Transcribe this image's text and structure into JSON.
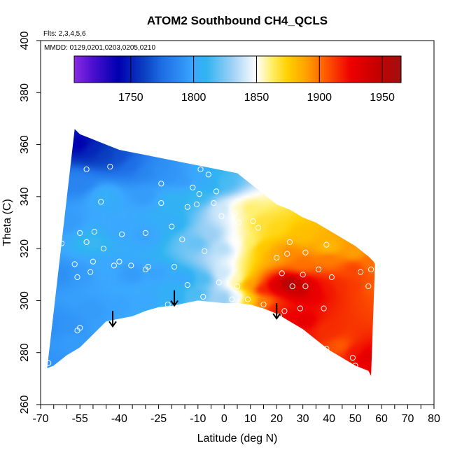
{
  "chart_data": {
    "type": "heatmap",
    "title": "ATOM2 Southbound CH4_QCLS",
    "xlabel": "Latitude (deg N)",
    "ylabel": "Theta (C)",
    "xlim": [
      -70,
      80
    ],
    "ylim": [
      260,
      400
    ],
    "x_ticks": [
      -70,
      -55,
      -40,
      -25,
      -10,
      0,
      10,
      20,
      30,
      40,
      50,
      60,
      70,
      80
    ],
    "x_tick_labels": [
      "-70",
      "-55",
      "-40",
      "-25",
      "-10",
      "0",
      "10",
      "20",
      "30",
      "40",
      "50",
      "60",
      "70",
      "80"
    ],
    "x_minor_ticks": [
      -65,
      -60,
      -50,
      -45,
      -35,
      -30,
      -20,
      -15,
      -5,
      5,
      15,
      25,
      35,
      45,
      55,
      65,
      75
    ],
    "y_ticks": [
      260,
      280,
      300,
      320,
      340,
      360,
      380,
      400
    ],
    "y_tick_labels": [
      "260",
      "280",
      "300",
      "320",
      "340",
      "360",
      "380",
      "400"
    ],
    "annotations": {
      "flights": "Flts: 2,3,4,5,6",
      "dates": "MMDD: 0129,0201,0203,0205,0210"
    },
    "colorbar": {
      "min": 1705,
      "max": 1965,
      "ticks": [
        1750,
        1800,
        1850,
        1900,
        1950
      ],
      "tick_labels": [
        "1750",
        "1800",
        "1850",
        "1900",
        "1950"
      ],
      "colors": [
        "#8a2be2",
        "#4b0fd0",
        "#0000b0",
        "#0a3ec0",
        "#1e6ee6",
        "#2e8ff5",
        "#3ba8ff",
        "#30b4f2",
        "#9ad0f5",
        "#ffffff",
        "#ffef6a",
        "#ffd000",
        "#ffa000",
        "#ff5a00",
        "#ee0000",
        "#c80000",
        "#a01010"
      ],
      "stops": [
        1705,
        1720,
        1740,
        1760,
        1775,
        1790,
        1800,
        1810,
        1830,
        1850,
        1862,
        1875,
        1890,
        1905,
        1925,
        1945,
        1965
      ]
    },
    "domain_top_boundary": [
      [
        -57,
        366
      ],
      [
        -55,
        364
      ],
      [
        -50,
        362
      ],
      [
        -45,
        360
      ],
      [
        -40,
        358
      ],
      [
        -35,
        357
      ],
      [
        -30,
        356
      ],
      [
        -25,
        355
      ],
      [
        -20,
        354
      ],
      [
        -15,
        353
      ],
      [
        -10,
        352
      ],
      [
        -5,
        351
      ],
      [
        0,
        350
      ],
      [
        5,
        349
      ],
      [
        10,
        345
      ],
      [
        15,
        341
      ],
      [
        20,
        337
      ],
      [
        25,
        335
      ],
      [
        30,
        332
      ],
      [
        35,
        330
      ],
      [
        40,
        327
      ],
      [
        45,
        324
      ],
      [
        50,
        321
      ],
      [
        55,
        317
      ],
      [
        57,
        315
      ],
      [
        57.5,
        314
      ]
    ],
    "domain_bottom_boundary": [
      [
        -67.5,
        274
      ],
      [
        -65,
        275
      ],
      [
        -60,
        279
      ],
      [
        -55,
        282
      ],
      [
        -50,
        287
      ],
      [
        -45,
        292
      ],
      [
        -40,
        293
      ],
      [
        -35,
        294
      ],
      [
        -30,
        296
      ],
      [
        -25,
        297.5
      ],
      [
        -20,
        298
      ],
      [
        -15,
        299
      ],
      [
        -10,
        300
      ],
      [
        -5,
        299.5
      ],
      [
        0,
        299
      ],
      [
        5,
        299
      ],
      [
        10,
        298.5
      ],
      [
        15,
        297
      ],
      [
        20,
        295
      ],
      [
        25,
        292
      ],
      [
        30,
        289
      ],
      [
        35,
        285
      ],
      [
        40,
        281
      ],
      [
        45,
        278
      ],
      [
        50,
        275
      ],
      [
        55,
        273
      ],
      [
        56,
        271
      ]
    ],
    "field_samples": [
      [
        -55,
        360,
        1740
      ],
      [
        -50,
        358,
        1752
      ],
      [
        -45,
        356,
        1760
      ],
      [
        -40,
        355,
        1765
      ],
      [
        -35,
        352,
        1775
      ],
      [
        -30,
        350,
        1785
      ],
      [
        -25,
        350,
        1790
      ],
      [
        -20,
        348,
        1792
      ],
      [
        -15,
        346,
        1795
      ],
      [
        -10,
        346,
        1800
      ],
      [
        -5,
        345,
        1805
      ],
      [
        0,
        345,
        1815
      ],
      [
        -55,
        345,
        1785
      ],
      [
        -45,
        340,
        1805
      ],
      [
        -30,
        340,
        1795
      ],
      [
        -20,
        338,
        1808
      ],
      [
        -10,
        340,
        1812
      ],
      [
        0,
        335,
        1840
      ],
      [
        5,
        335,
        1855
      ],
      [
        10,
        335,
        1862
      ],
      [
        15,
        330,
        1868
      ],
      [
        20,
        328,
        1872
      ],
      [
        30,
        325,
        1880
      ],
      [
        40,
        320,
        1882
      ],
      [
        50,
        318,
        1890
      ],
      [
        56,
        314,
        1900
      ],
      [
        -60,
        330,
        1795
      ],
      [
        -50,
        322,
        1812
      ],
      [
        -40,
        328,
        1800
      ],
      [
        -30,
        325,
        1798
      ],
      [
        -20,
        330,
        1805
      ],
      [
        -10,
        322,
        1820
      ],
      [
        -5,
        325,
        1830
      ],
      [
        0,
        320,
        1835
      ],
      [
        5,
        322,
        1850
      ],
      [
        10,
        322,
        1862
      ],
      [
        15,
        320,
        1878
      ],
      [
        20,
        318,
        1888
      ],
      [
        25,
        318,
        1895
      ],
      [
        30,
        314,
        1900
      ],
      [
        40,
        316,
        1898
      ],
      [
        50,
        312,
        1910
      ],
      [
        -62,
        310,
        1790
      ],
      [
        -55,
        310,
        1795
      ],
      [
        -45,
        312,
        1800
      ],
      [
        -35,
        310,
        1795
      ],
      [
        -25,
        310,
        1798
      ],
      [
        -15,
        308,
        1800
      ],
      [
        -8,
        308,
        1815
      ],
      [
        0,
        310,
        1840
      ],
      [
        5,
        308,
        1855
      ],
      [
        10,
        306,
        1890
      ],
      [
        15,
        304,
        1918
      ],
      [
        20,
        305,
        1935
      ],
      [
        25,
        306,
        1958
      ],
      [
        30,
        304,
        1945
      ],
      [
        35,
        303,
        1928
      ],
      [
        40,
        304,
        1920
      ],
      [
        45,
        305,
        1915
      ],
      [
        50,
        305,
        1912
      ],
      [
        56,
        305,
        1905
      ],
      [
        -66,
        290,
        1790
      ],
      [
        -60,
        290,
        1792
      ],
      [
        -50,
        296,
        1795
      ],
      [
        -40,
        298,
        1798
      ],
      [
        -30,
        300,
        1800
      ],
      [
        -20,
        301,
        1805
      ],
      [
        -10,
        302,
        1815
      ],
      [
        0,
        301,
        1830
      ],
      [
        5,
        301,
        1845
      ],
      [
        10,
        300,
        1875
      ],
      [
        15,
        299,
        1898
      ],
      [
        20,
        296,
        1918
      ],
      [
        25,
        294,
        1925
      ],
      [
        30,
        292,
        1930
      ],
      [
        40,
        288,
        1915
      ],
      [
        45,
        282,
        1905
      ],
      [
        50,
        280,
        1920
      ],
      [
        55,
        278,
        1930
      ],
      [
        -67,
        276,
        1792
      ],
      [
        -58,
        284,
        1795
      ],
      [
        0,
        300,
        1828
      ],
      [
        30,
        286,
        1920
      ]
    ],
    "sample_points": [
      [
        -52.5,
        350.5
      ],
      [
        -43.5,
        351.5
      ],
      [
        -9,
        350.5
      ],
      [
        -6,
        348.5
      ],
      [
        -12,
        343.5
      ],
      [
        -3,
        342
      ],
      [
        -24,
        345
      ],
      [
        -9.5,
        341
      ],
      [
        -47,
        338
      ],
      [
        -24,
        337.5
      ],
      [
        -4,
        337.5
      ],
      [
        -10.5,
        337
      ],
      [
        -14,
        336
      ],
      [
        -1,
        332.5
      ],
      [
        4,
        333.5
      ],
      [
        5.5,
        330
      ],
      [
        11,
        330.5
      ],
      [
        -20,
        328.5
      ],
      [
        13,
        328
      ],
      [
        -49.5,
        326.5
      ],
      [
        -30,
        326
      ],
      [
        -39,
        325.5
      ],
      [
        -55,
        326
      ],
      [
        -65,
        324
      ],
      [
        -16,
        323.5
      ],
      [
        25,
        322.5
      ],
      [
        39,
        321.5
      ],
      [
        -52.5,
        322.5
      ],
      [
        -62,
        322
      ],
      [
        -46,
        320
      ],
      [
        -7.5,
        319
      ],
      [
        24,
        318
      ],
      [
        31,
        318.5
      ],
      [
        20,
        316.5
      ],
      [
        -40,
        315
      ],
      [
        -50,
        315
      ],
      [
        -29,
        313
      ],
      [
        -35.5,
        313.5
      ],
      [
        -42,
        313.5
      ],
      [
        -19,
        313
      ],
      [
        -57,
        314
      ],
      [
        36,
        312
      ],
      [
        -30,
        312
      ],
      [
        52,
        311
      ],
      [
        22,
        310.5
      ],
      [
        30,
        310
      ],
      [
        -51,
        311
      ],
      [
        -56,
        309
      ],
      [
        41,
        309
      ],
      [
        56,
        312
      ],
      [
        -14,
        306
      ],
      [
        -2,
        307
      ],
      [
        5,
        305.5
      ],
      [
        26,
        305.5
      ],
      [
        31,
        305.5
      ],
      [
        55,
        305.5
      ],
      [
        -8,
        301.5
      ],
      [
        3,
        300.5
      ],
      [
        9,
        300.5
      ],
      [
        -21.5,
        298.5
      ],
      [
        15,
        298.5
      ],
      [
        23,
        296
      ],
      [
        29,
        297
      ],
      [
        38,
        297
      ],
      [
        21,
        294
      ],
      [
        -67.5,
        289
      ],
      [
        -55,
        289.5
      ],
      [
        -56,
        288.5
      ],
      [
        -51,
        283
      ],
      [
        39,
        281.5
      ],
      [
        49,
        278
      ],
      [
        -67,
        276
      ],
      [
        50,
        275
      ]
    ],
    "arrows": [
      [
        -42.5,
        296
      ],
      [
        -19,
        304
      ],
      [
        20,
        299
      ]
    ]
  }
}
